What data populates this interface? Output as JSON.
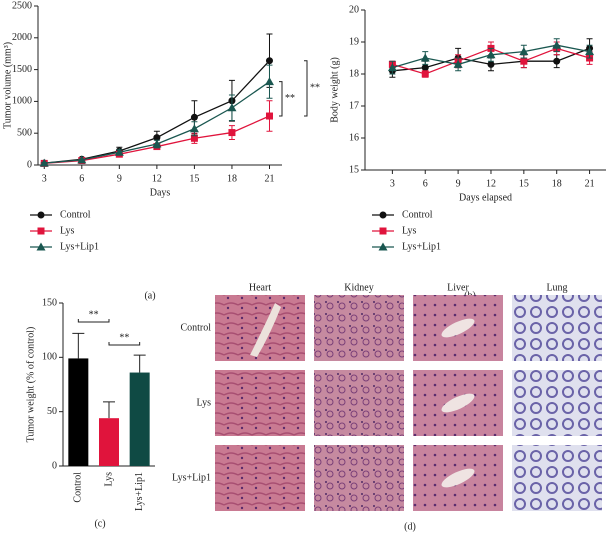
{
  "chart_data": [
    {
      "type": "line",
      "ylabel": "Tumor volume (mm³)",
      "xlabel": "Days",
      "panel": "(a)",
      "x": [
        3,
        6,
        9,
        12,
        15,
        18,
        21
      ],
      "xlim": [
        2.5,
        22
      ],
      "xticks": [
        3,
        6,
        9,
        12,
        15,
        18,
        21
      ],
      "ylim": [
        0,
        2500
      ],
      "yticks": [
        0,
        500,
        1000,
        1500,
        2000,
        2500
      ],
      "series": [
        {
          "name": "Control",
          "color": "#111111",
          "marker": "circle",
          "values": [
            30,
            90,
            220,
            430,
            750,
            1010,
            1640
          ],
          "errors": [
            10,
            20,
            60,
            100,
            260,
            320,
            420
          ]
        },
        {
          "name": "Lys",
          "color": "#e0143c",
          "marker": "square",
          "values": [
            25,
            70,
            170,
            290,
            420,
            510,
            770
          ],
          "errors": [
            5,
            15,
            30,
            40,
            80,
            110,
            240
          ]
        },
        {
          "name": "Lys+Lip1",
          "color": "#1a5750",
          "marker": "triangle",
          "values": [
            30,
            80,
            200,
            330,
            570,
            900,
            1310
          ],
          "errors": [
            10,
            15,
            40,
            60,
            110,
            200,
            260
          ]
        }
      ],
      "annotations": [
        "**",
        "**"
      ],
      "legend": "below"
    },
    {
      "type": "line",
      "ylabel": "Body weight (g)",
      "xlabel": "Days elapsed",
      "panel": "(b)",
      "x": [
        3,
        6,
        9,
        12,
        15,
        18,
        21
      ],
      "xlim": [
        0.5,
        22.5
      ],
      "xticks": [
        3,
        6,
        9,
        12,
        15,
        18,
        21
      ],
      "ylim": [
        15,
        20
      ],
      "yticks": [
        15,
        16,
        17,
        18,
        19,
        20
      ],
      "series": [
        {
          "name": "Control",
          "color": "#111111",
          "marker": "circle",
          "values": [
            18.1,
            18.2,
            18.5,
            18.3,
            18.4,
            18.4,
            18.8
          ],
          "errors": [
            0.2,
            0.2,
            0.3,
            0.2,
            0.2,
            0.2,
            0.3
          ]
        },
        {
          "name": "Lys",
          "color": "#e0143c",
          "marker": "square",
          "values": [
            18.3,
            18.0,
            18.4,
            18.8,
            18.4,
            18.8,
            18.5
          ],
          "errors": [
            0.1,
            0.1,
            0.2,
            0.2,
            0.2,
            0.2,
            0.2
          ]
        },
        {
          "name": "Lys+Lip1",
          "color": "#1a5750",
          "marker": "triangle",
          "values": [
            18.2,
            18.5,
            18.3,
            18.6,
            18.7,
            18.9,
            18.7
          ],
          "errors": [
            0.2,
            0.2,
            0.2,
            0.2,
            0.2,
            0.2,
            0.2
          ]
        }
      ],
      "legend": "below"
    },
    {
      "type": "bar",
      "ylabel": "Tumor weight (% of control)",
      "panel": "(c)",
      "categories": [
        "Control",
        "Lys",
        "Lys+Lip1"
      ],
      "values": [
        99,
        44,
        86
      ],
      "errors": [
        23,
        15,
        16
      ],
      "colors": [
        "#000000",
        "#e0143c",
        "#0f4a44"
      ],
      "ylim": [
        0,
        150
      ],
      "yticks": [
        0,
        50,
        100,
        150
      ],
      "annotations": [
        "**",
        "**"
      ]
    }
  ],
  "histology": {
    "panel": "(d)",
    "columns": [
      "Heart",
      "Kidney",
      "Liver",
      "Lung"
    ],
    "rows": [
      "Control",
      "Lys",
      "Lys+Lip1"
    ]
  }
}
